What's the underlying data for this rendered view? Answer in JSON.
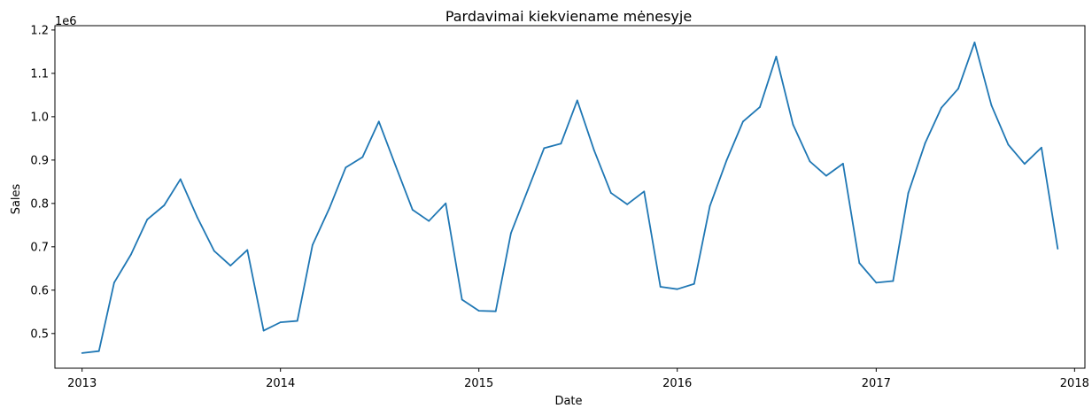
{
  "chart_data": {
    "type": "line",
    "title": "Pardavimai kiekviename mėnesyje",
    "xlabel": "Date",
    "ylabel": "Sales",
    "y_offset_label": "1e6",
    "ylim": [
      420000,
      1210000
    ],
    "xlim": [
      "2012-11-12",
      "2018-01-20"
    ],
    "grid": false,
    "legend": "none",
    "x_ticks": [
      "2013",
      "2014",
      "2015",
      "2016",
      "2017",
      "2018"
    ],
    "y_ticks": [
      {
        "value": 500000,
        "label": "0.5"
      },
      {
        "value": 600000,
        "label": "0.6"
      },
      {
        "value": 700000,
        "label": "0.7"
      },
      {
        "value": 800000,
        "label": "0.8"
      },
      {
        "value": 900000,
        "label": "0.9"
      },
      {
        "value": 1000000,
        "label": "1.0"
      },
      {
        "value": 1100000,
        "label": "1.1"
      },
      {
        "value": 1200000,
        "label": "1.2"
      }
    ],
    "colors": {
      "line": "#1f77b4"
    },
    "x": [
      "2013-01-01",
      "2013-02-01",
      "2013-03-01",
      "2013-04-01",
      "2013-05-01",
      "2013-06-01",
      "2013-07-01",
      "2013-08-01",
      "2013-09-01",
      "2013-10-01",
      "2013-11-01",
      "2013-12-01",
      "2014-01-01",
      "2014-02-01",
      "2014-03-01",
      "2014-04-01",
      "2014-05-01",
      "2014-06-01",
      "2014-07-01",
      "2014-08-01",
      "2014-09-01",
      "2014-10-01",
      "2014-11-01",
      "2014-12-01",
      "2015-01-01",
      "2015-02-01",
      "2015-03-01",
      "2015-04-01",
      "2015-05-01",
      "2015-06-01",
      "2015-07-01",
      "2015-08-01",
      "2015-09-01",
      "2015-10-01",
      "2015-11-01",
      "2015-12-01",
      "2016-01-01",
      "2016-02-01",
      "2016-03-01",
      "2016-04-01",
      "2016-05-01",
      "2016-06-01",
      "2016-07-01",
      "2016-08-01",
      "2016-09-01",
      "2016-10-01",
      "2016-11-01",
      "2016-12-01",
      "2017-01-01",
      "2017-02-01",
      "2017-03-01",
      "2017-04-01",
      "2017-05-01",
      "2017-06-01",
      "2017-07-01",
      "2017-08-01",
      "2017-09-01",
      "2017-10-01",
      "2017-11-01",
      "2017-12-01"
    ],
    "series": [
      {
        "values": [
          454900,
          459400,
          617400,
          682300,
          763200,
          795600,
          855900,
          767800,
          690500,
          656600,
          692600,
          506600,
          525900,
          529100,
          704300,
          788900,
          882800,
          906800,
          989000,
          886400,
          785300,
          759500,
          800200,
          578200,
          552500,
          551300,
          731400,
          830900,
          927500,
          937900,
          1037600,
          922500,
          824300,
          798000,
          827700,
          607800,
          602300,
          614400,
          794000,
          900000,
          989000,
          1022300,
          1138800,
          982000,
          896900,
          863800,
          891800,
          662700,
          617300,
          621000,
          823800,
          938900,
          1020800,
          1064700,
          1171400,
          1026400,
          935600,
          891200,
          928800,
          695500
        ]
      }
    ]
  }
}
